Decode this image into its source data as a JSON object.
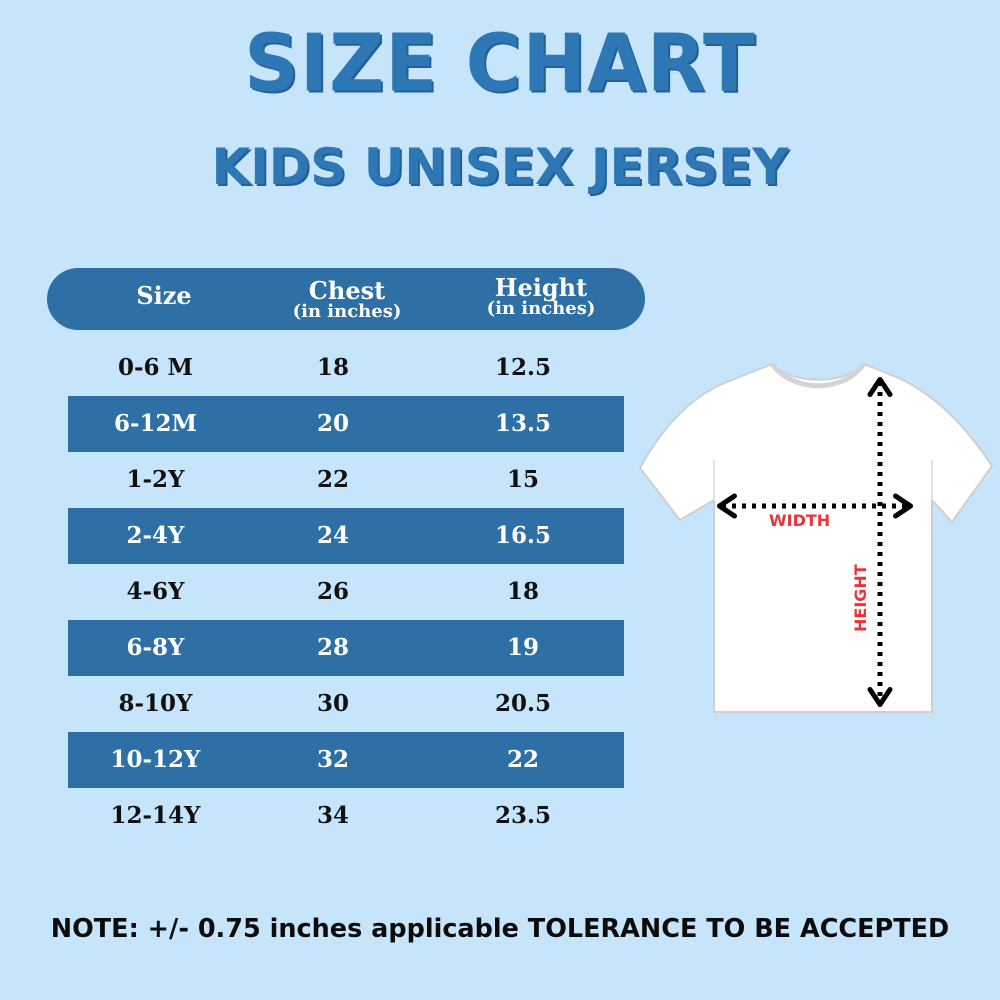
{
  "title": "SIZE CHART",
  "subtitle": "KIDS UNISEX JERSEY",
  "table": {
    "headers": {
      "size": "Size",
      "chest": "Chest",
      "chest_unit": "(in inches)",
      "height": "Height",
      "height_unit": "(in inches)"
    },
    "rows": [
      {
        "size": "0-6 M",
        "chest": "18",
        "height": "12.5"
      },
      {
        "size": "6-12M",
        "chest": "20",
        "height": "13.5"
      },
      {
        "size": "1-2Y",
        "chest": "22",
        "height": "15"
      },
      {
        "size": "2-4Y",
        "chest": "24",
        "height": "16.5"
      },
      {
        "size": "4-6Y",
        "chest": "26",
        "height": "18"
      },
      {
        "size": "6-8Y",
        "chest": "28",
        "height": "19"
      },
      {
        "size": "8-10Y",
        "chest": "30",
        "height": "20.5"
      },
      {
        "size": "10-12Y",
        "chest": "32",
        "height": "22"
      },
      {
        "size": "12-14Y",
        "chest": "34",
        "height": "23.5"
      }
    ]
  },
  "diagram": {
    "width_label": "WIDTH",
    "height_label": "HEIGHT"
  },
  "note": "NOTE: +/- 0.75 inches applicable TOLERANCE TO BE ACCEPTED",
  "colors": {
    "background": "#c6e5fb",
    "accent": "#2e77b5",
    "row_band": "#2e70a6",
    "label_red": "#e8353b"
  }
}
